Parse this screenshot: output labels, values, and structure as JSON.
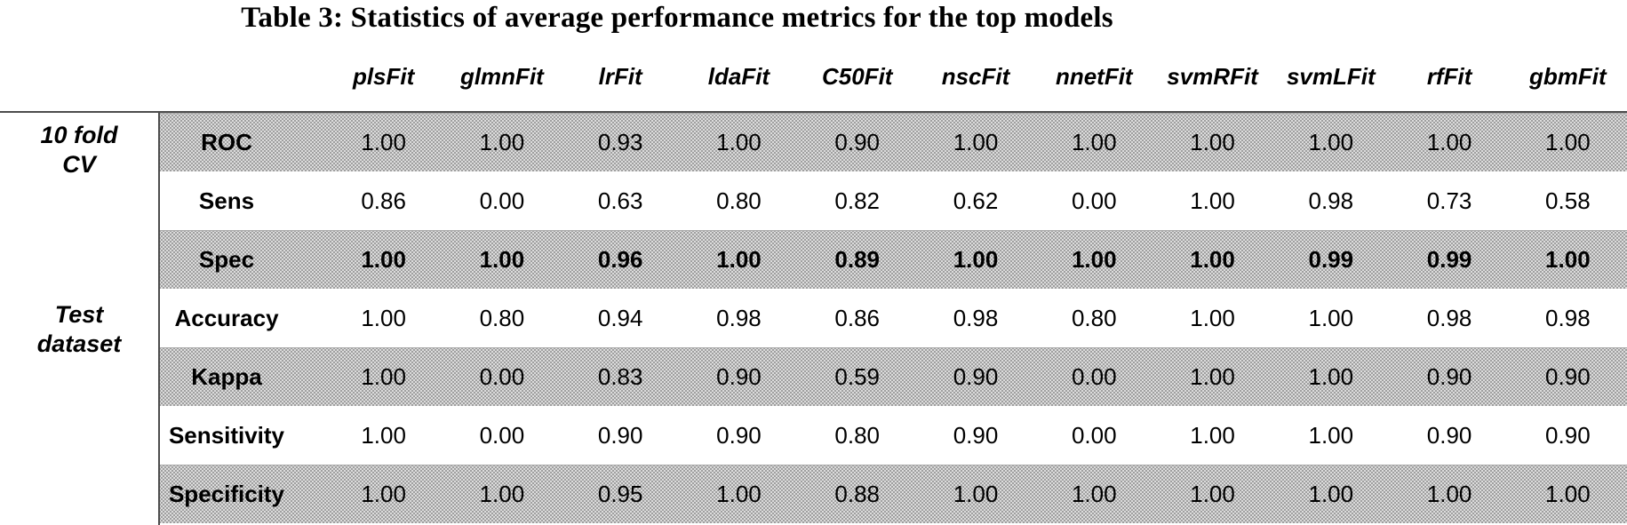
{
  "title": "Table 3: Statistics of average performance metrics for the top models",
  "table": {
    "model_columns": [
      "plsFit",
      "glmnFit",
      "lrFit",
      "ldaFit",
      "C50Fit",
      "nscFit",
      "nnetFit",
      "svmRFit",
      "svmLFit",
      "rfFit",
      "gbmFit"
    ],
    "groups": [
      {
        "label": "10 fold CV",
        "label_lines": [
          "10 fold",
          "CV"
        ],
        "metrics": [
          "ROC",
          "Sens",
          "Spec"
        ]
      },
      {
        "label": "Test dataset",
        "label_lines": [
          "Test",
          "dataset"
        ],
        "metrics": [
          "Accuracy",
          "Kappa",
          "Sensitivity",
          "Specificity"
        ]
      }
    ],
    "rows": [
      {
        "metric": "ROC",
        "group": "10 fold CV",
        "shaded": true,
        "bold_values": false,
        "values": [
          "1.00",
          "1.00",
          "0.93",
          "1.00",
          "0.90",
          "1.00",
          "1.00",
          "1.00",
          "1.00",
          "1.00",
          "1.00"
        ]
      },
      {
        "metric": "Sens",
        "group": "10 fold CV",
        "shaded": false,
        "bold_values": false,
        "values": [
          "0.86",
          "0.00",
          "0.63",
          "0.80",
          "0.82",
          "0.62",
          "0.00",
          "1.00",
          "0.98",
          "0.73",
          "0.58"
        ]
      },
      {
        "metric": "Spec",
        "group": "10 fold CV",
        "shaded": true,
        "bold_values": true,
        "values": [
          "1.00",
          "1.00",
          "0.96",
          "1.00",
          "0.89",
          "1.00",
          "1.00",
          "1.00",
          "0.99",
          "0.99",
          "1.00"
        ]
      },
      {
        "metric": "Accuracy",
        "group": "Test dataset",
        "shaded": false,
        "bold_values": false,
        "values": [
          "1.00",
          "0.80",
          "0.94",
          "0.98",
          "0.86",
          "0.98",
          "0.80",
          "1.00",
          "1.00",
          "0.98",
          "0.98"
        ]
      },
      {
        "metric": "Kappa",
        "group": "Test dataset",
        "shaded": true,
        "bold_values": false,
        "values": [
          "1.00",
          "0.00",
          "0.83",
          "0.90",
          "0.59",
          "0.90",
          "0.00",
          "1.00",
          "1.00",
          "0.90",
          "0.90"
        ]
      },
      {
        "metric": "Sensitivity",
        "group": "Test dataset",
        "shaded": false,
        "bold_values": false,
        "values": [
          "1.00",
          "0.00",
          "0.90",
          "0.90",
          "0.80",
          "0.90",
          "0.00",
          "1.00",
          "1.00",
          "0.90",
          "0.90"
        ]
      },
      {
        "metric": "Specificity",
        "group": "Test dataset",
        "shaded": true,
        "bold_values": false,
        "values": [
          "1.00",
          "1.00",
          "0.95",
          "1.00",
          "0.88",
          "1.00",
          "1.00",
          "1.00",
          "1.00",
          "1.00",
          "1.00"
        ]
      }
    ],
    "shading_color": "#dcdcdc",
    "rule_color": "#4d4d4d"
  }
}
